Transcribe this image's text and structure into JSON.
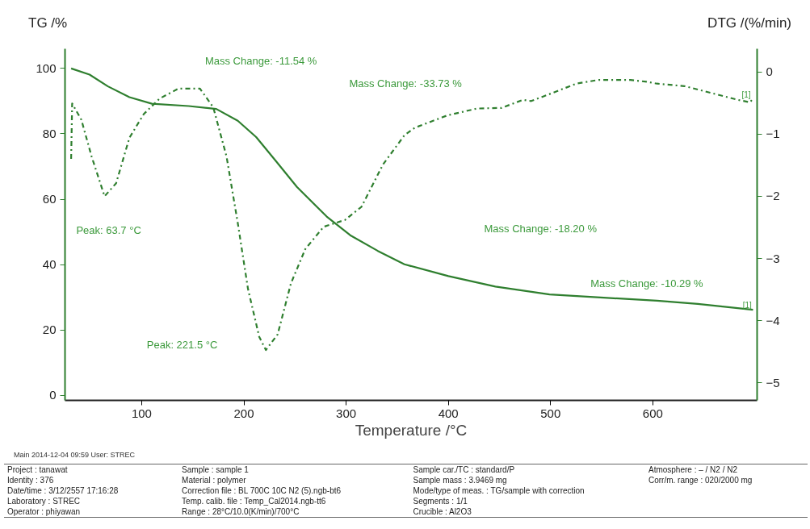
{
  "chart_data": {
    "type": "line",
    "xlabel": "Temperature /°C",
    "ylabel": "TG /%",
    "y2label": "DTG /(%/min)",
    "xlim": [
      25,
      702
    ],
    "xticks": [
      100,
      200,
      300,
      400,
      500,
      600
    ],
    "ylim": [
      -1.5,
      106
    ],
    "yticks": [
      0,
      20,
      40,
      60,
      80,
      100
    ],
    "y2lim": [
      -5.28,
      0.37
    ],
    "y2ticks": [
      -5,
      -4,
      -3,
      -2,
      -1,
      0
    ],
    "grid": false,
    "marker": "none",
    "series": [
      {
        "color": "#2f7f2f",
        "line_style": "solid",
        "x": [
          31,
          49,
          67,
          88,
          110,
          146,
          173,
          194,
          212,
          231,
          252,
          281,
          304,
          331,
          357,
          400,
          446,
          499,
          552,
          604,
          644,
          698
        ],
        "values": [
          100,
          98.1,
          94.5,
          91.2,
          89.2,
          88.5,
          87.6,
          84,
          79,
          71.8,
          63.7,
          54.7,
          49,
          44.2,
          40.1,
          36.5,
          33.3,
          30.9,
          29.9,
          29.0,
          28.0,
          26.2
        ]
      },
      {
        "color": "#2f7f2f",
        "line_style": "dashdot",
        "axis": "y2",
        "x": [
          31,
          32,
          41,
          51,
          63.7,
          75,
          88,
          102,
          117.5,
          136,
          157,
          170,
          183,
          194,
          204,
          215,
          221.5,
          233,
          246,
          260,
          278,
          299,
          315,
          336,
          357,
          367,
          399,
          428,
          452,
          473,
          481,
          505,
          525,
          547,
          578,
          594,
          604,
          631,
          657,
          683,
          695,
          698
        ],
        "values": [
          -1.4,
          -0.51,
          -0.77,
          -1.36,
          -2.0,
          -1.79,
          -1.06,
          -0.68,
          -0.43,
          -0.27,
          -0.27,
          -0.57,
          -1.36,
          -2.43,
          -3.49,
          -4.26,
          -4.47,
          -4.22,
          -3.4,
          -2.85,
          -2.49,
          -2.38,
          -2.17,
          -1.49,
          -1.02,
          -0.9,
          -0.7,
          -0.59,
          -0.58,
          -0.45,
          -0.47,
          -0.32,
          -0.19,
          -0.13,
          -0.13,
          -0.16,
          -0.19,
          -0.23,
          -0.34,
          -0.45,
          -0.49,
          -0.43
        ]
      }
    ],
    "annotations": [
      "Mass Change: -11.54 %",
      "Mass Change: -33.73 %",
      "Mass Change: -18.20 %",
      "Mass Change: -10.29 %",
      "Peak: 63.7 °C",
      "Peak: 221.5 °C",
      "[1]",
      "[1]",
      "Main   2014-12-04 09:59   User: STREC",
      "Project :   tanawat",
      "Identity :   376",
      "Date/time :   3/12/2557 17:16:28",
      "Laboratory :   STREC",
      "Operator :   phiyawan",
      "Sample :   sample 1",
      "Material :   polymer",
      "Correction file :   BL 700C 10C N2 (5).ngb-bt6",
      "Temp. calib. file :   Temp_Cal2014.ngb-tt6",
      "Range :   28°C/10.0(K/min)/700°C",
      "Sample car./TC :   standard/P",
      "Sample mass :   3.9469 mg",
      "Mode/type of meas. :   TG/sample with correction",
      "Segments :   1/1",
      "Crucible :   Al2O3",
      "Atmosphere :   – / N2 / N2",
      "Corr/m. range :   020/2000 mg"
    ]
  }
}
